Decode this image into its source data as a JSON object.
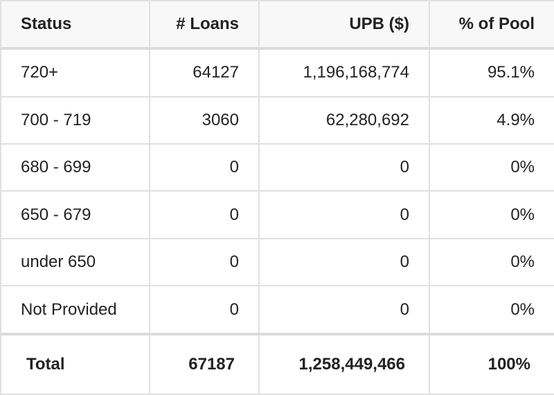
{
  "table": {
    "header": [
      "Status",
      "# Loans",
      "UPB ($)",
      "% of Pool"
    ],
    "rows": [
      [
        "720+",
        "64127",
        "1,196,168,774",
        "95.1%"
      ],
      [
        "700 - 719",
        "3060",
        "62,280,692",
        "4.9%"
      ],
      [
        "680 - 699",
        "0",
        "0",
        "0%"
      ],
      [
        "650 - 679",
        "0",
        "0",
        "0%"
      ],
      [
        "under 650",
        "0",
        "0",
        "0%"
      ],
      [
        "Not Provided",
        "0",
        "0",
        "0%"
      ]
    ],
    "total": [
      "Total",
      "67187",
      "1,258,449,466",
      "100%"
    ]
  }
}
